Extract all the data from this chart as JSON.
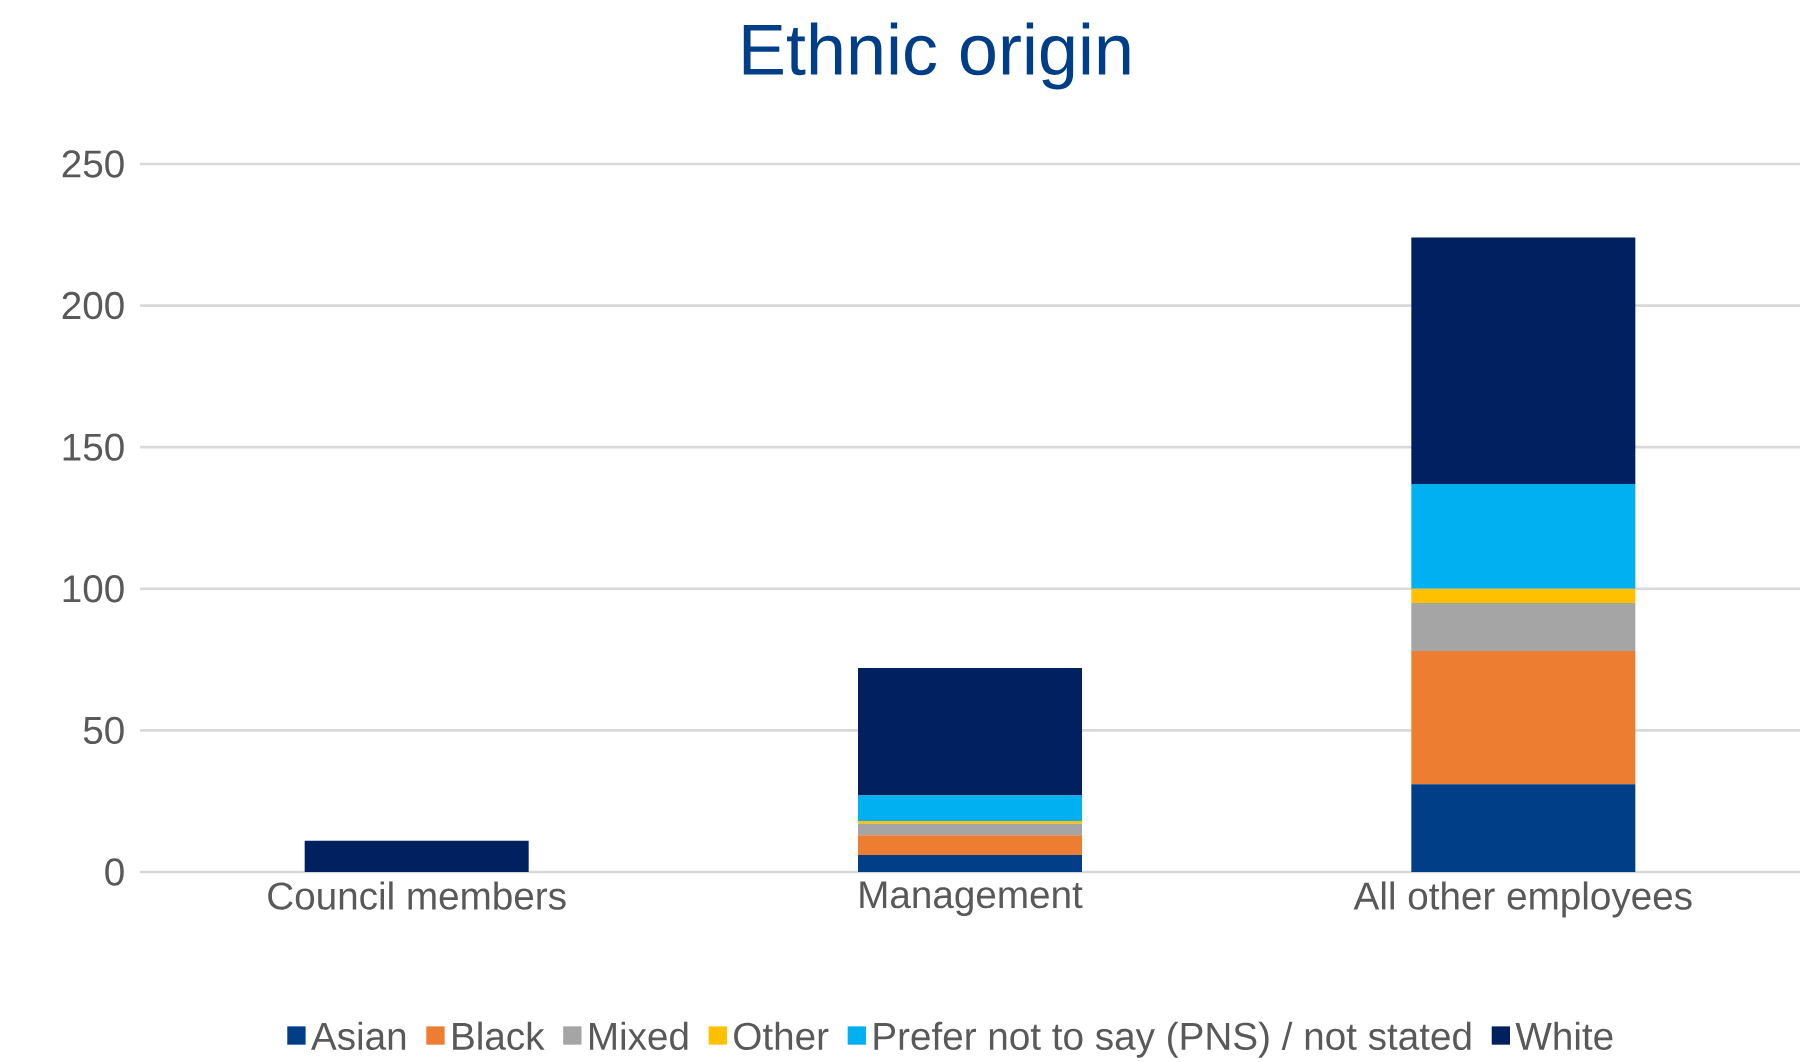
{
  "chart_data": {
    "type": "bar",
    "title": "Ethnic origin",
    "stacked": true,
    "categories": [
      "Council members",
      "Management",
      "All other employees"
    ],
    "series": [
      {
        "name": "Asian",
        "color": "#003f87",
        "values": [
          0,
          6,
          31
        ]
      },
      {
        "name": "Black",
        "color": "#ed7d31",
        "values": [
          0,
          7,
          47
        ]
      },
      {
        "name": "Mixed",
        "color": "#a5a5a5",
        "values": [
          0,
          4,
          17
        ]
      },
      {
        "name": "Other",
        "color": "#ffc000",
        "values": [
          0,
          1,
          5
        ]
      },
      {
        "name": "Prefer not to say (PNS) / not stated",
        "color": "#00b0f0",
        "values": [
          0,
          9,
          37
        ]
      },
      {
        "name": "White",
        "color": "#002060",
        "values": [
          11,
          45,
          87
        ]
      }
    ],
    "ylim": [
      0,
      250
    ],
    "yticks": [
      0,
      50,
      100,
      150,
      200,
      250
    ],
    "grid": "y",
    "legend": "bottom"
  }
}
